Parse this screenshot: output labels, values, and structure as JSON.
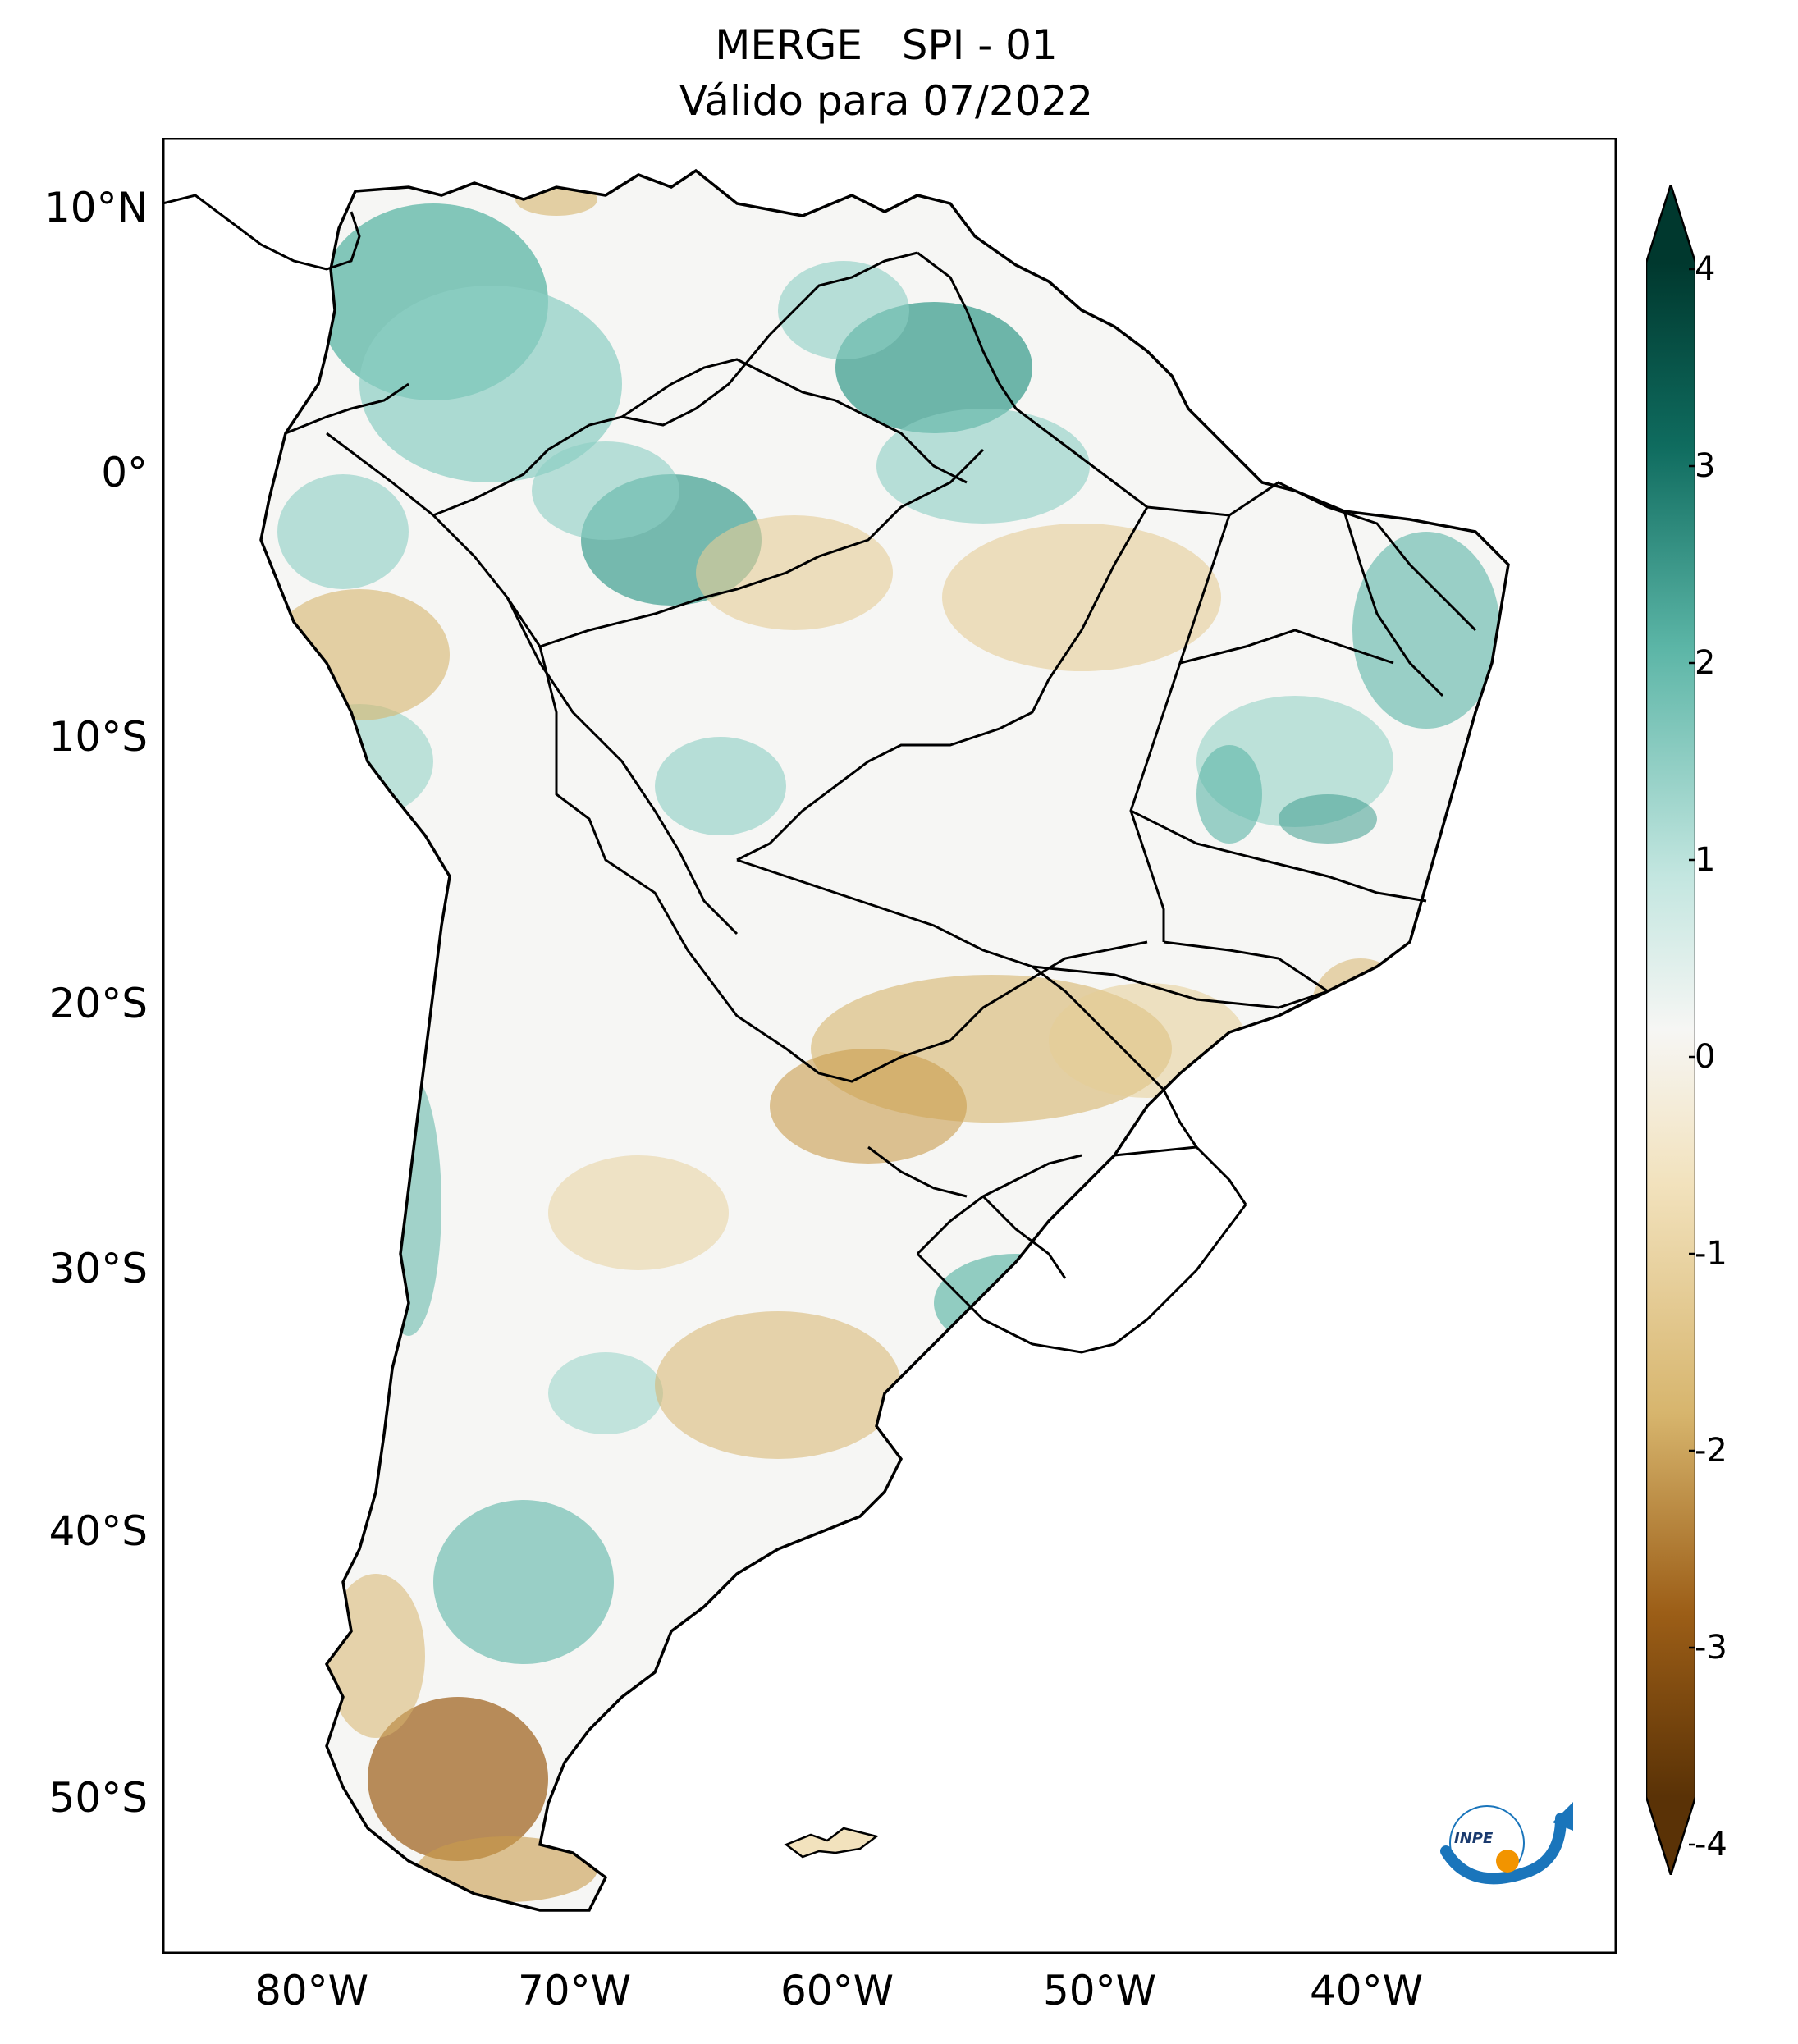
{
  "title": {
    "line1": "MERGE   SPI - 01",
    "line2": "Válido para 07/2022"
  },
  "axes": {
    "lat_labels": [
      "10°N",
      "0°",
      "10°S",
      "20°S",
      "30°S",
      "40°S",
      "50°S"
    ],
    "lon_labels": [
      "80°W",
      "70°W",
      "60°W",
      "50°W",
      "40°W"
    ],
    "lon_range": [
      -85,
      -29
    ],
    "lat_range": [
      -57,
      13
    ]
  },
  "colorbar": {
    "ticks": [
      "4",
      "3",
      "2",
      "1",
      "0",
      "-1",
      "-2",
      "-3",
      "-4"
    ],
    "range": [
      -4,
      4
    ],
    "extend": "both",
    "colors": {
      "dark_brown": "#5a3206",
      "brown": "#9c5e17",
      "tan": "#d7b56d",
      "light_tan": "#f2e2bd",
      "white": "#f6f6f4",
      "light_teal": "#c3e6e0",
      "teal": "#5bb5a6",
      "dark_teal": "#0f6c5f",
      "deep_teal": "#00382e"
    }
  },
  "logo": {
    "text": "INPE"
  }
}
